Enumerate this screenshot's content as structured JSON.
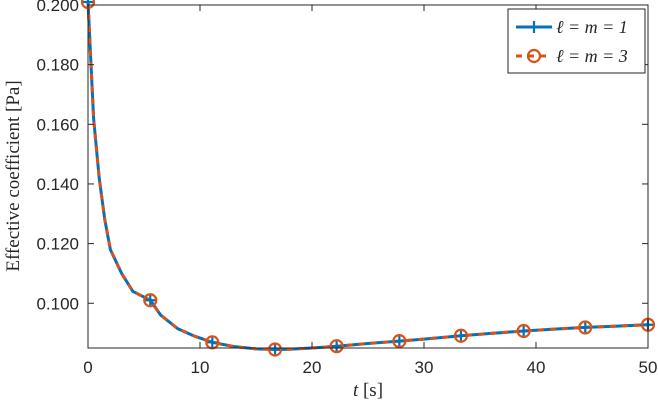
{
  "chart_data": {
    "type": "line",
    "xlabel": "t [s]",
    "ylabel": "Effective coefficient [Pa]",
    "xlim": [
      0,
      50
    ],
    "ylim": [
      0.085,
      0.2
    ],
    "xticks": [
      "0",
      "10",
      "20",
      "30",
      "40",
      "50"
    ],
    "yticks": [
      "0.100",
      "0.120",
      "0.140",
      "0.160",
      "0.180",
      "0.200"
    ],
    "grid": false,
    "legend_position": "top-right",
    "series": [
      {
        "name": "ℓ = m = 1",
        "color": "#0072BD",
        "marker": "plus",
        "x": [
          0,
          0.5,
          1,
          1.5,
          2,
          3,
          4,
          5.56,
          6.5,
          8,
          9.5,
          11.1,
          13,
          15,
          16.7,
          18,
          20,
          22.2,
          25,
          27.8,
          30,
          33.3,
          36,
          38.9,
          42,
          44.4,
          47,
          50
        ],
        "y": [
          0.201,
          0.162,
          0.142,
          0.128,
          0.118,
          0.11,
          0.104,
          0.101,
          0.096,
          0.0915,
          0.089,
          0.0869,
          0.0855,
          0.0847,
          0.0845,
          0.0846,
          0.085,
          0.0856,
          0.0865,
          0.0873,
          0.088,
          0.0891,
          0.0899,
          0.0907,
          0.0914,
          0.0919,
          0.0923,
          0.0928
        ],
        "marker_x": [
          0,
          5.56,
          11.1,
          16.7,
          22.2,
          27.8,
          33.3,
          38.9,
          44.4,
          50
        ]
      },
      {
        "name": "ℓ = m = 3",
        "color": "#D95319",
        "marker": "circle",
        "x": [
          0,
          0.5,
          1,
          1.5,
          2,
          3,
          4,
          5.56,
          6.5,
          8,
          9.5,
          11.1,
          13,
          15,
          16.7,
          18,
          20,
          22.2,
          25,
          27.8,
          30,
          33.3,
          36,
          38.9,
          42,
          44.4,
          47,
          50
        ],
        "y": [
          0.201,
          0.162,
          0.142,
          0.128,
          0.118,
          0.11,
          0.104,
          0.101,
          0.096,
          0.0915,
          0.089,
          0.0869,
          0.0855,
          0.0847,
          0.0845,
          0.0846,
          0.085,
          0.0856,
          0.0865,
          0.0873,
          0.088,
          0.0891,
          0.0899,
          0.0907,
          0.0914,
          0.0919,
          0.0923,
          0.0928
        ],
        "marker_x": [
          0,
          5.56,
          11.1,
          16.7,
          22.2,
          27.8,
          33.3,
          38.9,
          44.4,
          50
        ]
      }
    ]
  }
}
